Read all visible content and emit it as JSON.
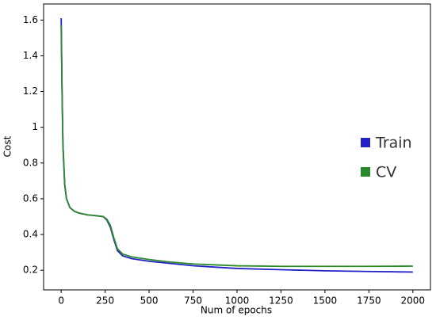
{
  "chart_data": {
    "type": "line",
    "xlabel": "Num of epochs",
    "ylabel": "Cost",
    "x": [
      0,
      5,
      10,
      20,
      30,
      50,
      75,
      100,
      150,
      200,
      240,
      260,
      280,
      300,
      320,
      350,
      400,
      500,
      600,
      750,
      1000,
      1250,
      1500,
      1750,
      2000
    ],
    "series": [
      {
        "name": "Train",
        "color": "#2222c8",
        "values": [
          1.61,
          1.2,
          0.9,
          0.68,
          0.6,
          0.55,
          0.53,
          0.52,
          0.51,
          0.505,
          0.5,
          0.48,
          0.44,
          0.37,
          0.31,
          0.28,
          0.265,
          0.25,
          0.24,
          0.225,
          0.21,
          0.203,
          0.197,
          0.193,
          0.19
        ]
      },
      {
        "name": "CV",
        "color": "#2a8a2a",
        "values": [
          1.57,
          1.2,
          0.9,
          0.68,
          0.6,
          0.55,
          0.53,
          0.52,
          0.51,
          0.505,
          0.5,
          0.485,
          0.45,
          0.38,
          0.32,
          0.29,
          0.275,
          0.26,
          0.248,
          0.235,
          0.225,
          0.222,
          0.222,
          0.222,
          0.223
        ]
      }
    ],
    "xlim": [
      -100,
      2100
    ],
    "xticks": [
      0,
      250,
      500,
      750,
      1000,
      1250,
      1500,
      1750,
      2000
    ],
    "ylim": [
      0.09,
      1.69
    ],
    "yticks": [
      0.2,
      0.4,
      0.6,
      0.8,
      1.0,
      1.2,
      1.4,
      1.6
    ],
    "grid": false,
    "legend": "center right"
  }
}
